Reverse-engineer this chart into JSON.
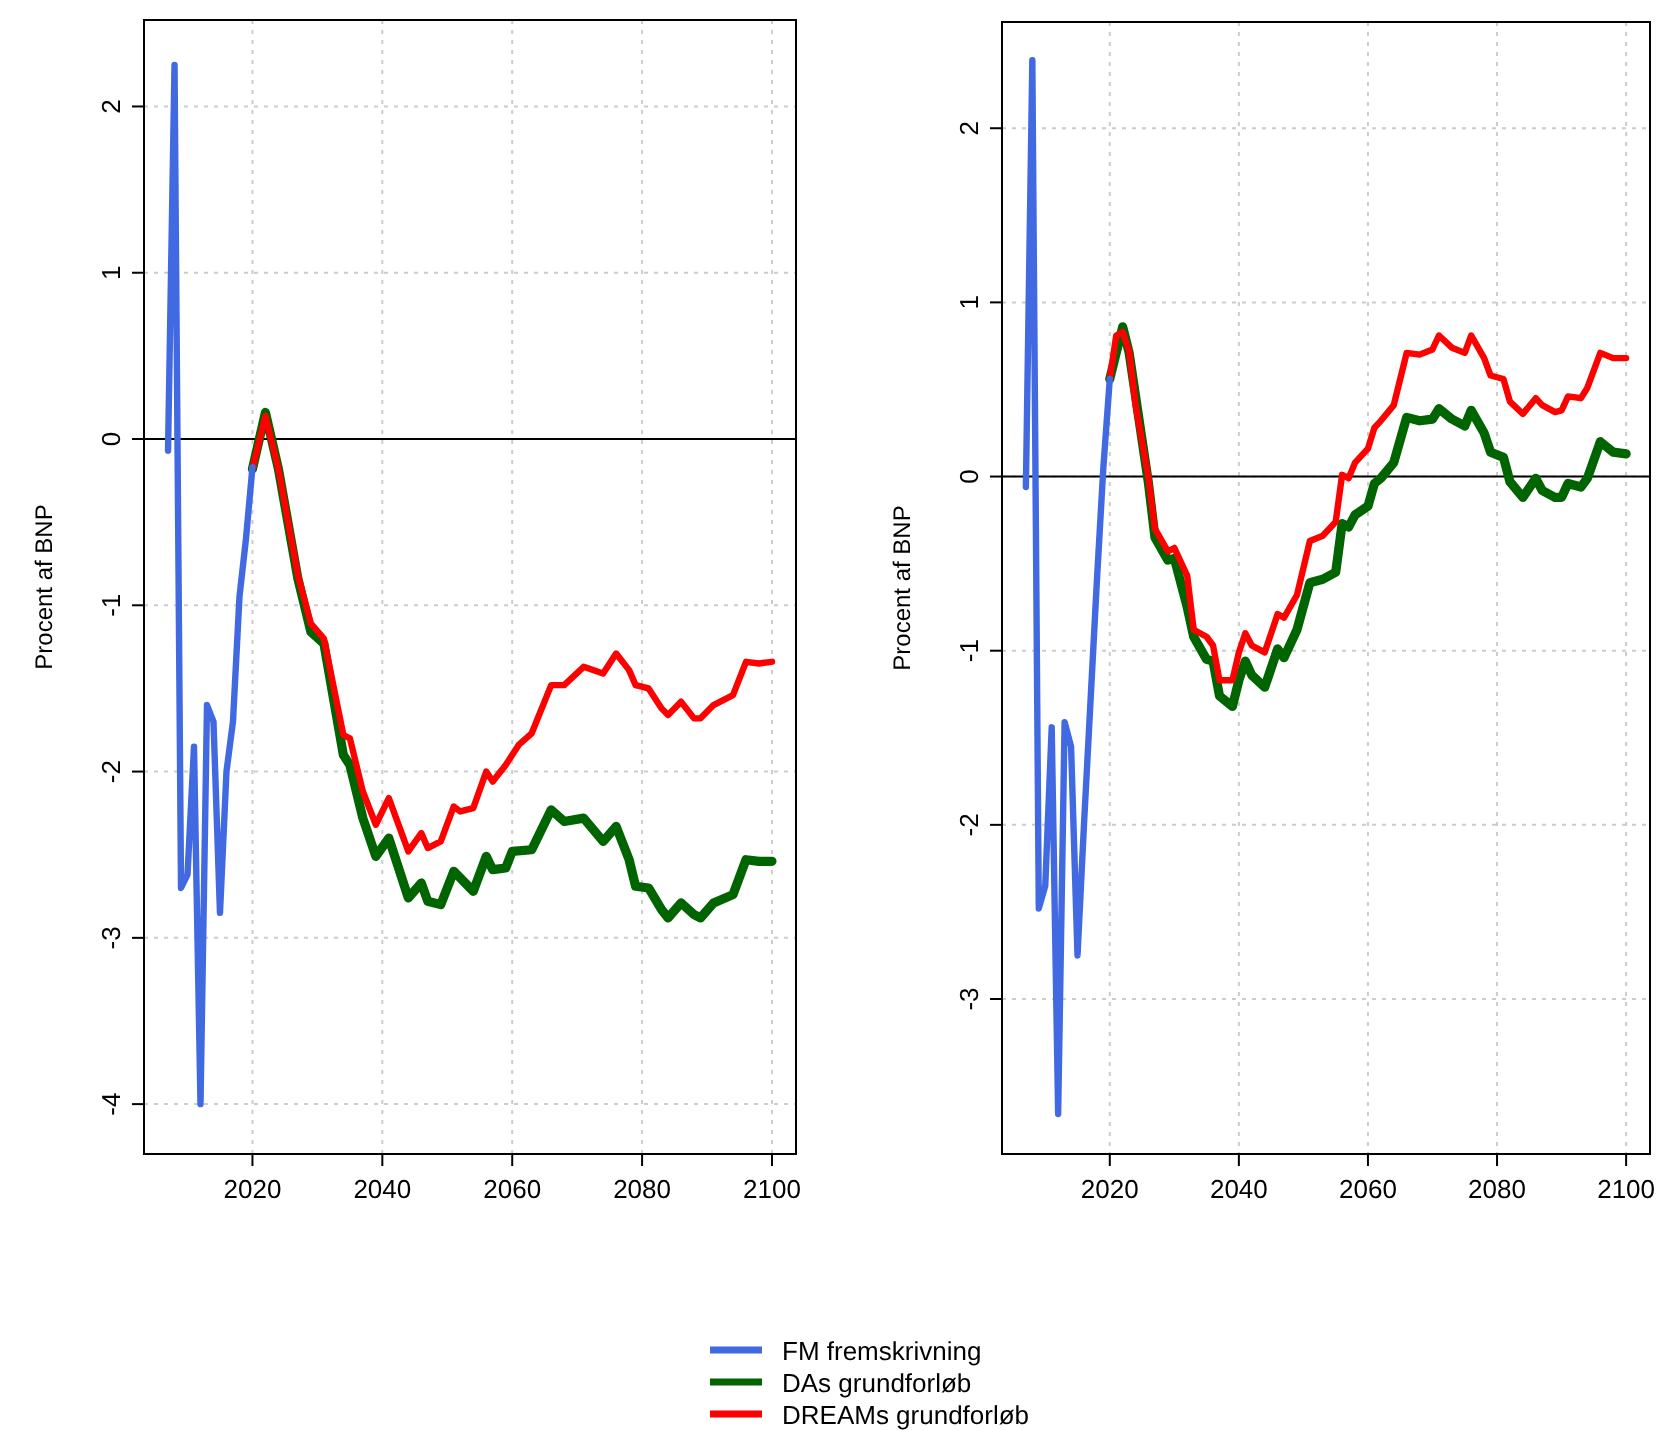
{
  "chart_data": [
    {
      "type": "line",
      "ylabel": "Procent af BNP",
      "xlim": [
        2003.3,
        2103.7
      ],
      "ylim": [
        -4.3,
        2.52
      ],
      "xticks": [
        2020,
        2040,
        2060,
        2080,
        2100
      ],
      "yticks": [
        -4,
        -3,
        -2,
        -1,
        0,
        1,
        2
      ],
      "grid": true,
      "legend": "bottom",
      "line_style": "solid",
      "marker": "none",
      "ref_lines": [
        {
          "axis": "y",
          "value": 0,
          "color": "#000000"
        }
      ],
      "series": [
        {
          "name": "FM fremskrivning",
          "color": "#4169e1",
          "x": [
            2007,
            2008,
            2009,
            2010,
            2011,
            2012,
            2013,
            2014,
            2015,
            2016,
            2017,
            2018,
            2019,
            2020
          ],
          "values": [
            -0.07,
            2.25,
            -2.7,
            -2.62,
            -1.85,
            -4.0,
            -1.6,
            -1.7,
            -2.85,
            -2.0,
            -1.7,
            -0.95,
            -0.6,
            -0.17
          ]
        },
        {
          "name": "DAs grundforløb",
          "color": "#006400",
          "x": [
            2020,
            2022,
            2024,
            2027,
            2029,
            2031,
            2034,
            2035,
            2037,
            2039,
            2041,
            2044,
            2046,
            2047,
            2049,
            2051,
            2054,
            2056,
            2057,
            2059,
            2060,
            2063,
            2066,
            2068,
            2071,
            2074,
            2076,
            2078,
            2079,
            2081,
            2083,
            2084,
            2086,
            2088,
            2089,
            2091,
            2094,
            2096,
            2098,
            2100
          ],
          "values": [
            -0.18,
            0.16,
            -0.18,
            -0.84,
            -1.16,
            -1.23,
            -1.9,
            -1.96,
            -2.28,
            -2.51,
            -2.4,
            -2.76,
            -2.67,
            -2.78,
            -2.8,
            -2.6,
            -2.72,
            -2.51,
            -2.59,
            -2.58,
            -2.48,
            -2.47,
            -2.23,
            -2.3,
            -2.28,
            -2.42,
            -2.33,
            -2.53,
            -2.69,
            -2.7,
            -2.83,
            -2.88,
            -2.79,
            -2.86,
            -2.88,
            -2.79,
            -2.74,
            -2.53,
            -2.54,
            -2.54
          ]
        },
        {
          "name": "DREAMs grundforløb",
          "color": "#ff0000",
          "x": [
            2020,
            2022,
            2024,
            2027,
            2029,
            2031,
            2034,
            2035,
            2037,
            2039,
            2041,
            2044,
            2046,
            2047,
            2049,
            2051,
            2052,
            2054,
            2056,
            2057,
            2059,
            2061,
            2063,
            2066,
            2068,
            2071,
            2074,
            2076,
            2078,
            2079,
            2081,
            2083,
            2084,
            2086,
            2088,
            2089,
            2091,
            2094,
            2096,
            2098,
            2100
          ],
          "values": [
            -0.18,
            0.14,
            -0.18,
            -0.82,
            -1.11,
            -1.2,
            -1.78,
            -1.8,
            -2.12,
            -2.32,
            -2.16,
            -2.48,
            -2.37,
            -2.46,
            -2.42,
            -2.21,
            -2.24,
            -2.22,
            -2.0,
            -2.06,
            -1.96,
            -1.84,
            -1.77,
            -1.48,
            -1.48,
            -1.37,
            -1.41,
            -1.29,
            -1.39,
            -1.48,
            -1.5,
            -1.62,
            -1.66,
            -1.58,
            -1.68,
            -1.68,
            -1.6,
            -1.54,
            -1.34,
            -1.35,
            -1.34
          ]
        }
      ]
    },
    {
      "type": "line",
      "ylabel": "Procent af BNP",
      "xlim": [
        2003.3,
        2103.7
      ],
      "ylim": [
        -3.89,
        2.61
      ],
      "xticks": [
        2020,
        2040,
        2060,
        2080,
        2100
      ],
      "yticks": [
        -3,
        -2,
        -1,
        0,
        1,
        2
      ],
      "grid": true,
      "line_style": "solid",
      "marker": "none",
      "ref_lines": [
        {
          "axis": "y",
          "value": 0,
          "color": "#000000"
        }
      ],
      "series": [
        {
          "color": "#4169e1",
          "x": [
            2007,
            2008,
            2009,
            2010,
            2011,
            2012,
            2013,
            2014,
            2015,
            2016,
            2017,
            2018,
            2019,
            2020
          ],
          "values": [
            -0.06,
            2.39,
            -2.48,
            -2.35,
            -1.44,
            -3.66,
            -1.41,
            -1.55,
            -2.75,
            -2.0,
            -1.3,
            -0.6,
            0.05,
            0.56
          ]
        },
        {
          "color": "#006400",
          "x": [
            2020,
            2022,
            2023,
            2026,
            2027,
            2029,
            2030,
            2032,
            2033,
            2035,
            2036,
            2037,
            2039,
            2040,
            2041,
            2042,
            2044,
            2046,
            2047,
            2049,
            2051,
            2053,
            2055,
            2056,
            2057,
            2058,
            2060,
            2061,
            2062,
            2064,
            2066,
            2068,
            2070,
            2071,
            2073,
            2075,
            2076,
            2078,
            2079,
            2081,
            2082,
            2084,
            2086,
            2087,
            2089,
            2090,
            2091,
            2093,
            2094,
            2096,
            2098,
            2100
          ],
          "values": [
            0.56,
            0.86,
            0.71,
            -0.04,
            -0.35,
            -0.48,
            -0.47,
            -0.75,
            -0.92,
            -1.05,
            -1.06,
            -1.26,
            -1.32,
            -1.17,
            -1.06,
            -1.14,
            -1.21,
            -0.99,
            -1.04,
            -0.88,
            -0.61,
            -0.59,
            -0.55,
            -0.27,
            -0.29,
            -0.22,
            -0.17,
            -0.04,
            -0.01,
            0.08,
            0.34,
            0.32,
            0.33,
            0.39,
            0.33,
            0.29,
            0.38,
            0.25,
            0.14,
            0.11,
            -0.03,
            -0.12,
            -0.01,
            -0.08,
            -0.12,
            -0.12,
            -0.04,
            -0.06,
            -0.01,
            0.2,
            0.14,
            0.13
          ]
        },
        {
          "color": "#ff0000",
          "x": [
            2020,
            2021,
            2022,
            2023,
            2024,
            2026,
            2027,
            2029,
            2030,
            2032,
            2033,
            2035,
            2036,
            2037,
            2039,
            2040,
            2041,
            2042,
            2044,
            2046,
            2047,
            2049,
            2051,
            2053,
            2055,
            2056,
            2057,
            2058,
            2060,
            2061,
            2062,
            2064,
            2066,
            2068,
            2070,
            2071,
            2073,
            2075,
            2076,
            2078,
            2079,
            2081,
            2082,
            2084,
            2086,
            2087,
            2089,
            2090,
            2091,
            2093,
            2094,
            2096,
            2098,
            2100
          ],
          "values": [
            0.56,
            0.81,
            0.83,
            0.72,
            0.41,
            -0.01,
            -0.3,
            -0.43,
            -0.41,
            -0.57,
            -0.88,
            -0.92,
            -0.97,
            -1.17,
            -1.17,
            -1.01,
            -0.9,
            -0.97,
            -1.01,
            -0.79,
            -0.81,
            -0.68,
            -0.37,
            -0.34,
            -0.26,
            0.01,
            -0.01,
            0.08,
            0.16,
            0.28,
            0.32,
            0.41,
            0.71,
            0.7,
            0.73,
            0.81,
            0.74,
            0.71,
            0.81,
            0.68,
            0.58,
            0.56,
            0.43,
            0.36,
            0.45,
            0.41,
            0.37,
            0.38,
            0.46,
            0.45,
            0.51,
            0.71,
            0.68,
            0.68
          ]
        }
      ]
    }
  ]
}
